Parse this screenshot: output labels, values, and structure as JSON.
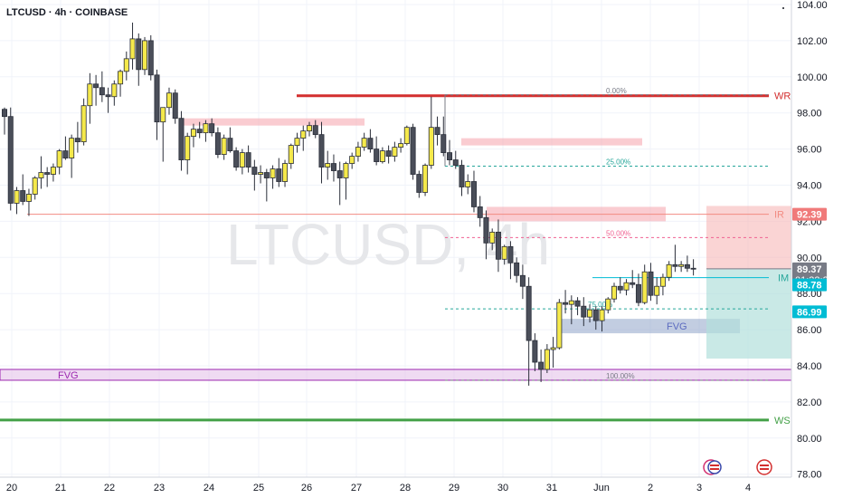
{
  "header": {
    "title": "LTCUSD · 4h · COINBASE",
    "watermark": "LTCUSD, 4h"
  },
  "chart_data": {
    "type": "candlestick",
    "symbol": "LTCUSD",
    "interval": "4h",
    "exchange": "COINBASE",
    "y_axis": {
      "min": 78,
      "max": 104,
      "ticks": [
        "104.00",
        "102.00",
        "100.00",
        "98.00",
        "96.00",
        "94.00",
        "92.00",
        "90.00",
        "88.00",
        "86.00",
        "84.00",
        "82.00",
        "80.00",
        "78.00"
      ]
    },
    "x_axis": {
      "ticks": [
        "20",
        "21",
        "22",
        "23",
        "24",
        "25",
        "26",
        "27",
        "28",
        "29",
        "30",
        "31",
        "Jun",
        "2",
        "3",
        "4"
      ]
    },
    "candles": [
      [
        98.2,
        98.3,
        96.8,
        97.8
      ],
      [
        97.8,
        98.3,
        92.6,
        93.0
      ],
      [
        93.0,
        93.9,
        92.4,
        93.7
      ],
      [
        93.7,
        94.6,
        92.9,
        93.1
      ],
      [
        93.1,
        93.8,
        92.3,
        93.5
      ],
      [
        93.5,
        94.5,
        93.2,
        94.4
      ],
      [
        94.4,
        95.6,
        93.8,
        94.7
      ],
      [
        94.7,
        95.0,
        93.9,
        94.6
      ],
      [
        94.6,
        95.2,
        94.2,
        95.0
      ],
      [
        95.0,
        96.0,
        94.6,
        95.9
      ],
      [
        95.9,
        96.7,
        95.4,
        95.5
      ],
      [
        95.5,
        96.8,
        94.4,
        96.6
      ],
      [
        96.6,
        97.5,
        95.8,
        96.4
      ],
      [
        96.4,
        98.8,
        96.2,
        98.4
      ],
      [
        98.4,
        100.2,
        97.4,
        99.6
      ],
      [
        99.6,
        100.1,
        98.4,
        99.4
      ],
      [
        99.4,
        100.3,
        98.6,
        99.0
      ],
      [
        99.0,
        99.4,
        98.0,
        98.9
      ],
      [
        98.9,
        99.8,
        98.4,
        99.6
      ],
      [
        99.6,
        100.4,
        98.9,
        100.3
      ],
      [
        100.3,
        101.4,
        99.8,
        101.0
      ],
      [
        101.0,
        103.0,
        100.4,
        102.1
      ],
      [
        102.1,
        102.4,
        99.5,
        100.4
      ],
      [
        100.4,
        102.2,
        100.1,
        102.0
      ],
      [
        102.0,
        102.3,
        99.8,
        100.1
      ],
      [
        100.1,
        100.4,
        96.5,
        97.5
      ],
      [
        97.5,
        98.2,
        95.3,
        98.3
      ],
      [
        98.3,
        99.4,
        97.9,
        99.1
      ],
      [
        99.1,
        99.3,
        97.4,
        97.7
      ],
      [
        97.7,
        98.1,
        94.8,
        95.4
      ],
      [
        95.4,
        96.9,
        94.6,
        96.7
      ],
      [
        96.7,
        97.4,
        96.1,
        97.1
      ],
      [
        97.1,
        97.5,
        96.6,
        96.9
      ],
      [
        96.9,
        97.6,
        96.4,
        97.4
      ],
      [
        97.4,
        97.7,
        96.7,
        96.9
      ],
      [
        96.9,
        97.2,
        95.5,
        95.7
      ],
      [
        95.7,
        96.8,
        95.4,
        96.6
      ],
      [
        96.6,
        97.2,
        95.8,
        95.9
      ],
      [
        95.9,
        96.1,
        94.8,
        95.0
      ],
      [
        95.0,
        96.0,
        94.6,
        95.8
      ],
      [
        95.8,
        96.2,
        94.7,
        95.0
      ],
      [
        95.0,
        95.4,
        93.7,
        94.6
      ],
      [
        94.6,
        95.1,
        94.1,
        94.7
      ],
      [
        94.7,
        94.9,
        93.1,
        94.4
      ],
      [
        94.4,
        95.1,
        93.8,
        94.9
      ],
      [
        94.9,
        95.5,
        93.9,
        94.2
      ],
      [
        94.2,
        95.4,
        93.9,
        95.2
      ],
      [
        95.2,
        96.3,
        94.9,
        96.2
      ],
      [
        96.2,
        96.9,
        95.8,
        96.6
      ],
      [
        96.6,
        97.3,
        95.9,
        97.0
      ],
      [
        97.0,
        97.5,
        96.7,
        97.3
      ],
      [
        97.3,
        97.6,
        96.6,
        96.8
      ],
      [
        96.8,
        97.5,
        94.1,
        95.0
      ],
      [
        95.0,
        95.9,
        94.3,
        95.2
      ],
      [
        95.2,
        95.7,
        94.2,
        94.8
      ],
      [
        94.8,
        95.3,
        92.9,
        94.4
      ],
      [
        94.4,
        95.3,
        93.2,
        95.2
      ],
      [
        95.2,
        95.8,
        94.9,
        95.6
      ],
      [
        95.6,
        96.4,
        95.3,
        96.1
      ],
      [
        96.1,
        96.9,
        95.9,
        96.6
      ],
      [
        96.6,
        97.1,
        95.8,
        96.0
      ],
      [
        96.0,
        96.7,
        95.1,
        95.3
      ],
      [
        95.3,
        96.1,
        95.2,
        95.9
      ],
      [
        95.9,
        96.2,
        95.2,
        95.6
      ],
      [
        95.6,
        96.4,
        95.3,
        96.1
      ],
      [
        96.1,
        96.6,
        95.8,
        96.3
      ],
      [
        96.3,
        97.3,
        96.2,
        97.2
      ],
      [
        97.2,
        97.4,
        94.3,
        94.6
      ],
      [
        94.6,
        94.8,
        93.3,
        93.6
      ],
      [
        93.6,
        95.2,
        93.4,
        95.1
      ],
      [
        95.1,
        98.9,
        94.9,
        97.2
      ],
      [
        97.2,
        97.8,
        96.2,
        96.8
      ],
      [
        96.8,
        97.8,
        95.6,
        95.8
      ],
      [
        95.8,
        96.5,
        95.1,
        95.4
      ],
      [
        95.4,
        95.9,
        94.9,
        95.1
      ],
      [
        95.1,
        95.4,
        93.4,
        93.9
      ],
      [
        93.9,
        94.6,
        93.5,
        94.2
      ],
      [
        94.2,
        94.8,
        92.5,
        92.8
      ],
      [
        92.8,
        93.4,
        91.7,
        92.2
      ],
      [
        92.2,
        92.6,
        89.9,
        90.8
      ],
      [
        90.8,
        91.6,
        90.4,
        91.4
      ],
      [
        91.4,
        92.1,
        89.2,
        89.9
      ],
      [
        89.9,
        90.7,
        89.6,
        90.6
      ],
      [
        90.6,
        90.9,
        88.8,
        89.7
      ],
      [
        89.7,
        90.0,
        88.6,
        89.0
      ],
      [
        89.0,
        89.6,
        87.7,
        88.4
      ],
      [
        88.4,
        88.9,
        82.9,
        85.4
      ],
      [
        85.4,
        85.8,
        83.7,
        84.2
      ],
      [
        84.2,
        84.9,
        83.1,
        83.8
      ],
      [
        83.8,
        85.2,
        83.6,
        84.9
      ],
      [
        84.9,
        85.6,
        83.9,
        85.0
      ],
      [
        85.0,
        87.7,
        84.9,
        87.5
      ],
      [
        87.5,
        88.2,
        86.9,
        87.4
      ],
      [
        87.4,
        87.9,
        86.3,
        87.6
      ],
      [
        87.6,
        87.8,
        86.8,
        87.3
      ],
      [
        87.3,
        87.8,
        86.2,
        86.7
      ],
      [
        86.7,
        87.4,
        86.4,
        87.1
      ],
      [
        87.1,
        87.3,
        86.0,
        86.5
      ],
      [
        86.5,
        87.3,
        85.9,
        87.1
      ],
      [
        87.1,
        87.8,
        86.9,
        87.7
      ],
      [
        87.7,
        88.6,
        87.5,
        88.4
      ],
      [
        88.4,
        88.9,
        88.0,
        88.2
      ],
      [
        88.2,
        88.8,
        87.9,
        88.6
      ],
      [
        88.6,
        89.3,
        88.3,
        88.5
      ],
      [
        88.5,
        89.1,
        87.3,
        87.5
      ],
      [
        87.5,
        89.6,
        87.4,
        89.2
      ],
      [
        89.2,
        89.7,
        87.6,
        87.9
      ],
      [
        87.9,
        88.9,
        87.4,
        88.4
      ],
      [
        88.4,
        89.1,
        87.9,
        88.9
      ],
      [
        88.9,
        89.8,
        88.7,
        89.6
      ],
      [
        89.6,
        90.7,
        89.2,
        89.5
      ],
      [
        89.5,
        89.8,
        89.2,
        89.6
      ],
      [
        89.6,
        90.1,
        89.2,
        89.4
      ],
      [
        89.4,
        89.9,
        89.0,
        89.37
      ]
    ],
    "price_lines": [
      {
        "label": "WR",
        "price": 98.95,
        "color": "#d32f2f"
      },
      {
        "label": "WS",
        "price": 81.0,
        "color": "#43a047"
      },
      {
        "label": "IR",
        "price": 92.39,
        "color": "#f28b82"
      }
    ],
    "fib_labels": [
      {
        "text": "0.00%",
        "price": 99.0
      },
      {
        "text": "25.00%",
        "price": 95.05
      },
      {
        "text": "50.00%",
        "price": 91.1
      },
      {
        "text": "75.00%",
        "price": 87.15
      },
      {
        "text": "100.00%",
        "price": 83.2
      }
    ],
    "zones": [
      {
        "label": "",
        "top": 97.7,
        "bottom": 97.3,
        "color": "#f5a3ac"
      },
      {
        "label": "",
        "top": 96.6,
        "bottom": 96.2,
        "color": "#f5a3ac"
      },
      {
        "label": "",
        "top": 92.8,
        "bottom": 92.0,
        "color": "#f5a3ac"
      },
      {
        "label": "FVG",
        "top": 86.6,
        "bottom": 85.8,
        "color": "#90a4c8"
      },
      {
        "label": "FVG",
        "top": 83.8,
        "bottom": 83.2,
        "color": "#e1bee7"
      }
    ],
    "markers": [
      {
        "label": "IM",
        "price": 88.88
      }
    ],
    "price_badges": [
      {
        "text": "92.39",
        "price": 92.39,
        "color": "#f07a7a"
      },
      {
        "text": "89.37",
        "subtext": "01:32:31",
        "price": 89.37,
        "color": "#787b86"
      },
      {
        "text": "88.78",
        "price": 88.78,
        "color": "#00bcd4"
      },
      {
        "text": "86.99",
        "price": 86.99,
        "color": "#00bcd4"
      }
    ],
    "grid": true
  }
}
